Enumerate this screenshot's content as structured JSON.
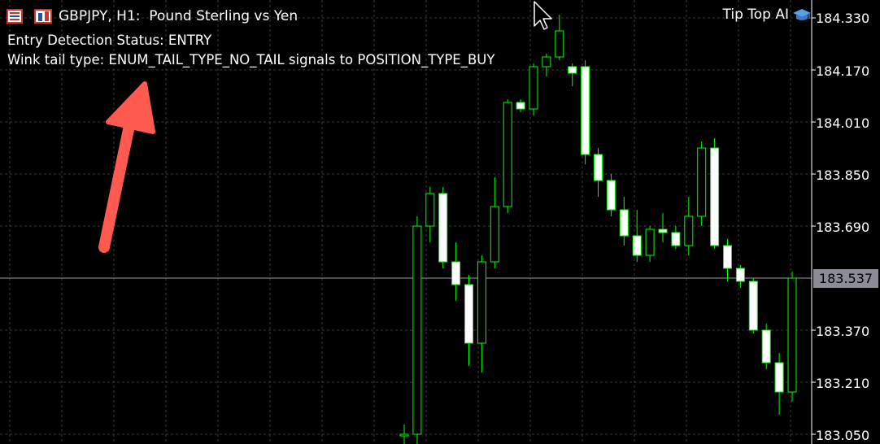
{
  "header": {
    "symbol_line": "GBPJPY, H1:  Pound Sterling vs Yen",
    "brand": "Tip Top AI"
  },
  "status": {
    "entry_status": "Entry Detection Status: ENTRY",
    "tail_type": "Wink tail type: ENUM_TAIL_TYPE_NO_TAIL signals to POSITION_TYPE_BUY"
  },
  "price_axis": {
    "labels": [
      "184.330",
      "184.170",
      "184.010",
      "183.850",
      "183.690",
      "183.370",
      "183.210",
      "183.050"
    ],
    "current_price": "183.537"
  },
  "colors": {
    "background": "#000000",
    "grid": "#3a3a3a",
    "candle_outline": "#00ff00",
    "bull_body": "#000000",
    "bear_body": "#ffffff",
    "arrow": "#ff5a4f",
    "current_tag": "#8c8c96"
  },
  "icons": [
    "chart-list-icon",
    "window-layout-icon",
    "mouse-cursor-icon",
    "graduation-cap-icon",
    "annotation-arrow"
  ],
  "chart_data": {
    "type": "candlestick",
    "symbol": "GBPJPY",
    "timeframe": "H1",
    "ylim": [
      183.02,
      184.36
    ],
    "grid": true,
    "current_price": 183.537,
    "candles": [
      {
        "o": 183.05,
        "h": 183.08,
        "l": 183.0,
        "c": 183.05
      },
      {
        "o": 183.05,
        "h": 183.72,
        "l": 183.0,
        "c": 183.69
      },
      {
        "o": 183.69,
        "h": 183.81,
        "l": 183.64,
        "c": 183.79
      },
      {
        "o": 183.79,
        "h": 183.81,
        "l": 183.56,
        "c": 183.58
      },
      {
        "o": 183.58,
        "h": 183.64,
        "l": 183.46,
        "c": 183.51
      },
      {
        "o": 183.51,
        "h": 183.54,
        "l": 183.26,
        "c": 183.33
      },
      {
        "o": 183.33,
        "h": 183.6,
        "l": 183.24,
        "c": 183.58
      },
      {
        "o": 183.58,
        "h": 183.84,
        "l": 183.56,
        "c": 183.75
      },
      {
        "o": 183.75,
        "h": 184.08,
        "l": 183.73,
        "c": 184.07
      },
      {
        "o": 184.07,
        "h": 184.08,
        "l": 184.04,
        "c": 184.05
      },
      {
        "o": 184.05,
        "h": 184.19,
        "l": 184.03,
        "c": 184.18
      },
      {
        "o": 184.18,
        "h": 184.22,
        "l": 184.15,
        "c": 184.21
      },
      {
        "o": 184.21,
        "h": 184.34,
        "l": 184.2,
        "c": 184.29
      },
      {
        "o": 184.18,
        "h": 184.19,
        "l": 184.12,
        "c": 184.16
      },
      {
        "o": 184.18,
        "h": 184.2,
        "l": 183.88,
        "c": 183.91
      },
      {
        "o": 183.91,
        "h": 183.93,
        "l": 183.78,
        "c": 183.83
      },
      {
        "o": 183.83,
        "h": 183.85,
        "l": 183.72,
        "c": 183.74
      },
      {
        "o": 183.74,
        "h": 183.78,
        "l": 183.63,
        "c": 183.66
      },
      {
        "o": 183.66,
        "h": 183.74,
        "l": 183.58,
        "c": 183.6
      },
      {
        "o": 183.6,
        "h": 183.69,
        "l": 183.58,
        "c": 183.68
      },
      {
        "o": 183.68,
        "h": 183.73,
        "l": 183.64,
        "c": 183.67
      },
      {
        "o": 183.67,
        "h": 183.69,
        "l": 183.62,
        "c": 183.63
      },
      {
        "o": 183.63,
        "h": 183.78,
        "l": 183.6,
        "c": 183.72
      },
      {
        "o": 183.72,
        "h": 183.95,
        "l": 183.69,
        "c": 183.93
      },
      {
        "o": 183.93,
        "h": 183.96,
        "l": 183.62,
        "c": 183.63
      },
      {
        "o": 183.63,
        "h": 183.65,
        "l": 183.52,
        "c": 183.56
      },
      {
        "o": 183.56,
        "h": 183.57,
        "l": 183.5,
        "c": 183.52
      },
      {
        "o": 183.52,
        "h": 183.53,
        "l": 183.36,
        "c": 183.37
      },
      {
        "o": 183.37,
        "h": 183.39,
        "l": 183.25,
        "c": 183.27
      },
      {
        "o": 183.27,
        "h": 183.3,
        "l": 183.11,
        "c": 183.18
      },
      {
        "o": 183.18,
        "h": 183.55,
        "l": 183.15,
        "c": 183.53
      }
    ]
  }
}
